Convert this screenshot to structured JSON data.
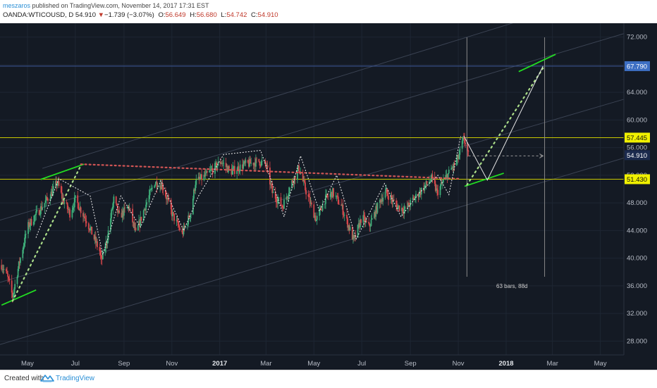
{
  "header": {
    "author": "meszaros",
    "published": " published on TradingView.com, November 14, 2017 17:31 EST",
    "symbol": "OANDA:WTICOUSD, D",
    "last": "54.910",
    "down_arrow": "▼",
    "change": "−1.739 (−3.07%)",
    "open_label": "O:",
    "open": "56.649",
    "high_label": "H:",
    "high": "56.680",
    "low_label": "L:",
    "low": "54.742",
    "close_label": "C:",
    "close": "54.910"
  },
  "footer": {
    "created": "Created with",
    "brand": "TradingView"
  },
  "colors": {
    "background": "#141a24",
    "grid": "#1e2633",
    "axis_text": "#b7bcc6",
    "up_candle": "#3fae7a",
    "down_candle": "#d8474b",
    "horizontal_level": "#c8c800",
    "trendline_green": "#22dd22",
    "channel_line": "#3a4252",
    "target_line": "#3d5a9c",
    "measure_line": "#888888",
    "target_label_bg": "#3d6fc4",
    "price_label_bg": "#1b2a4d",
    "level_label_bg": "#f0f000",
    "dotted_red": "#d25555",
    "dotted_green": "#aadd88"
  },
  "chart_data": {
    "type": "candlestick",
    "symbol": "OANDA:WTICOUSD",
    "interval": "D",
    "y_axis": {
      "ticks": [
        28,
        32,
        36,
        40,
        44,
        48,
        52,
        56,
        60,
        64,
        68,
        72
      ],
      "tick_labels": [
        "28.000",
        "32.000",
        "36.000",
        "40.000",
        "44.000",
        "48.000",
        "52.000",
        "56.000",
        "60.000",
        "64.000",
        "68.000",
        "72.000"
      ],
      "range": [
        26,
        74
      ]
    },
    "x_axis": {
      "ticks": [
        {
          "label": "May",
          "date": "2016-05-01",
          "bold": false
        },
        {
          "label": "Jul",
          "date": "2016-07-01",
          "bold": false
        },
        {
          "label": "Sep",
          "date": "2016-09-01",
          "bold": false
        },
        {
          "label": "Nov",
          "date": "2016-11-01",
          "bold": false
        },
        {
          "label": "2017",
          "date": "2017-01-01",
          "bold": true
        },
        {
          "label": "Mar",
          "date": "2017-03-01",
          "bold": false
        },
        {
          "label": "May",
          "date": "2017-05-01",
          "bold": false
        },
        {
          "label": "Jul",
          "date": "2017-07-01",
          "bold": false
        },
        {
          "label": "Sep",
          "date": "2017-09-01",
          "bold": false
        },
        {
          "label": "Nov",
          "date": "2017-11-01",
          "bold": false
        },
        {
          "label": "2018",
          "date": "2018-01-01",
          "bold": true
        },
        {
          "label": "Mar",
          "date": "2018-03-01",
          "bold": false
        },
        {
          "label": "May",
          "date": "2018-05-01",
          "bold": false
        }
      ],
      "range": [
        "2016-03-27",
        "2018-05-31"
      ]
    },
    "price_labels": [
      {
        "value": 67.79,
        "text": "67.790",
        "kind": "target"
      },
      {
        "value": 57.445,
        "text": "57.445",
        "kind": "level"
      },
      {
        "value": 54.91,
        "text": "54.910",
        "kind": "last"
      },
      {
        "value": 51.43,
        "text": "51.430",
        "kind": "level"
      }
    ],
    "horizontal_levels": [
      57.445,
      51.43
    ],
    "target_level": 67.79,
    "price_path": [
      [
        "2016-03-29",
        39.0
      ],
      [
        "2016-04-05",
        37.5
      ],
      [
        "2016-04-12",
        34.5
      ],
      [
        "2016-04-20",
        39.0
      ],
      [
        "2016-05-01",
        44.5
      ],
      [
        "2016-05-10",
        46.0
      ],
      [
        "2016-05-20",
        47.5
      ],
      [
        "2016-06-01",
        49.5
      ],
      [
        "2016-06-08",
        51.0
      ],
      [
        "2016-06-15",
        48.5
      ],
      [
        "2016-06-24",
        46.5
      ],
      [
        "2016-07-01",
        48.5
      ],
      [
        "2016-07-15",
        45.5
      ],
      [
        "2016-08-01",
        41.0
      ],
      [
        "2016-08-03",
        39.5
      ],
      [
        "2016-08-10",
        42.5
      ],
      [
        "2016-08-19",
        48.5
      ],
      [
        "2016-08-26",
        46.0
      ],
      [
        "2016-09-07",
        47.5
      ],
      [
        "2016-09-16",
        43.5
      ],
      [
        "2016-09-28",
        47.5
      ],
      [
        "2016-10-10",
        51.0
      ],
      [
        "2016-10-20",
        50.5
      ],
      [
        "2016-11-01",
        46.5
      ],
      [
        "2016-11-14",
        43.5
      ],
      [
        "2016-11-25",
        46.5
      ],
      [
        "2016-12-01",
        51.0
      ],
      [
        "2016-12-15",
        52.0
      ],
      [
        "2017-01-03",
        54.0
      ],
      [
        "2017-01-15",
        52.5
      ],
      [
        "2017-02-01",
        53.5
      ],
      [
        "2017-02-20",
        54.0
      ],
      [
        "2017-03-01",
        53.5
      ],
      [
        "2017-03-09",
        49.5
      ],
      [
        "2017-03-22",
        47.5
      ],
      [
        "2017-04-03",
        51.0
      ],
      [
        "2017-04-12",
        53.0
      ],
      [
        "2017-04-20",
        50.0
      ],
      [
        "2017-05-04",
        45.5
      ],
      [
        "2017-05-15",
        48.5
      ],
      [
        "2017-05-25",
        49.5
      ],
      [
        "2017-06-05",
        47.5
      ],
      [
        "2017-06-21",
        42.5
      ],
      [
        "2017-07-01",
        46.0
      ],
      [
        "2017-07-10",
        44.5
      ],
      [
        "2017-07-25",
        48.5
      ],
      [
        "2017-08-01",
        49.5
      ],
      [
        "2017-08-15",
        47.5
      ],
      [
        "2017-08-25",
        47.0
      ],
      [
        "2017-09-05",
        48.5
      ],
      [
        "2017-09-20",
        50.5
      ],
      [
        "2017-09-28",
        51.5
      ],
      [
        "2017-10-05",
        49.5
      ],
      [
        "2017-10-15",
        51.5
      ],
      [
        "2017-10-27",
        53.5
      ],
      [
        "2017-11-01",
        54.5
      ],
      [
        "2017-11-07",
        57.0
      ],
      [
        "2017-11-10",
        56.8
      ],
      [
        "2017-11-14",
        54.9
      ]
    ],
    "drawings": {
      "green_trendlines": [
        [
          [
            "2016-03-29",
            33.2
          ],
          [
            "2016-05-12",
            35.4
          ]
        ],
        [
          [
            "2016-05-18",
            51.4
          ],
          [
            "2016-07-12",
            53.6
          ]
        ],
        [
          [
            "2017-11-09",
            50.4
          ],
          [
            "2017-12-29",
            52.3
          ]
        ],
        [
          [
            "2018-01-17",
            67.0
          ],
          [
            "2018-03-05",
            69.5
          ]
        ]
      ],
      "channel_lines": [
        [
          [
            "2016-03-27",
            27.5
          ],
          [
            "2018-05-31",
            54.5
          ]
        ],
        [
          [
            "2016-03-27",
            36.5
          ],
          [
            "2018-05-31",
            63.0
          ]
        ],
        [
          [
            "2016-03-27",
            45.5
          ],
          [
            "2018-05-31",
            72.5
          ]
        ],
        [
          [
            "2016-05-20",
            53.0
          ],
          [
            "2018-05-31",
            79.0
          ]
        ]
      ],
      "red_dotted_line": [
        [
          "2016-07-08",
          53.6
        ],
        [
          "2017-11-01",
          51.5
        ]
      ],
      "green_dotted_lines": [
        [
          [
            "2016-04-12",
            33.8
          ],
          [
            "2016-07-08",
            53.4
          ]
        ],
        [
          [
            "2017-11-12",
            50.6
          ],
          [
            "2018-02-17",
            67.5
          ]
        ]
      ],
      "white_dotted_zigzag": [
        [
          "2016-05-12",
          43.0
        ],
        [
          "2016-06-10",
          51.5
        ],
        [
          "2016-07-20",
          49.0
        ],
        [
          "2016-08-05",
          40.5
        ],
        [
          "2016-08-28",
          49.0
        ],
        [
          "2016-09-22",
          44.5
        ],
        [
          "2016-10-18",
          51.2
        ],
        [
          "2016-11-16",
          44.0
        ],
        [
          "2016-12-05",
          49.0
        ],
        [
          "2017-01-06",
          55.0
        ],
        [
          "2017-02-22",
          55.6
        ],
        [
          "2017-03-24",
          46.0
        ],
        [
          "2017-04-14",
          54.8
        ],
        [
          "2017-05-08",
          46.8
        ],
        [
          "2017-05-30",
          52.0
        ],
        [
          "2017-06-24",
          42.8
        ],
        [
          "2017-07-30",
          50.8
        ],
        [
          "2017-08-20",
          46.0
        ],
        [
          "2017-09-12",
          49.4
        ],
        [
          "2017-10-06",
          52.0
        ],
        [
          "2017-10-20",
          49.2
        ],
        [
          "2017-11-04",
          57.6
        ]
      ],
      "projection_path": [
        [
          "2017-11-08",
          57.7
        ],
        [
          "2017-12-08",
          51.3
        ],
        [
          "2018-02-17",
          67.8
        ]
      ],
      "dashed_arrow": {
        "y": 54.8,
        "from": "2017-11-14",
        "to": "2018-02-17"
      },
      "vertical_lines": [
        "2017-11-12",
        "2018-02-19"
      ],
      "measure_label": "63 bars, 88d"
    }
  }
}
